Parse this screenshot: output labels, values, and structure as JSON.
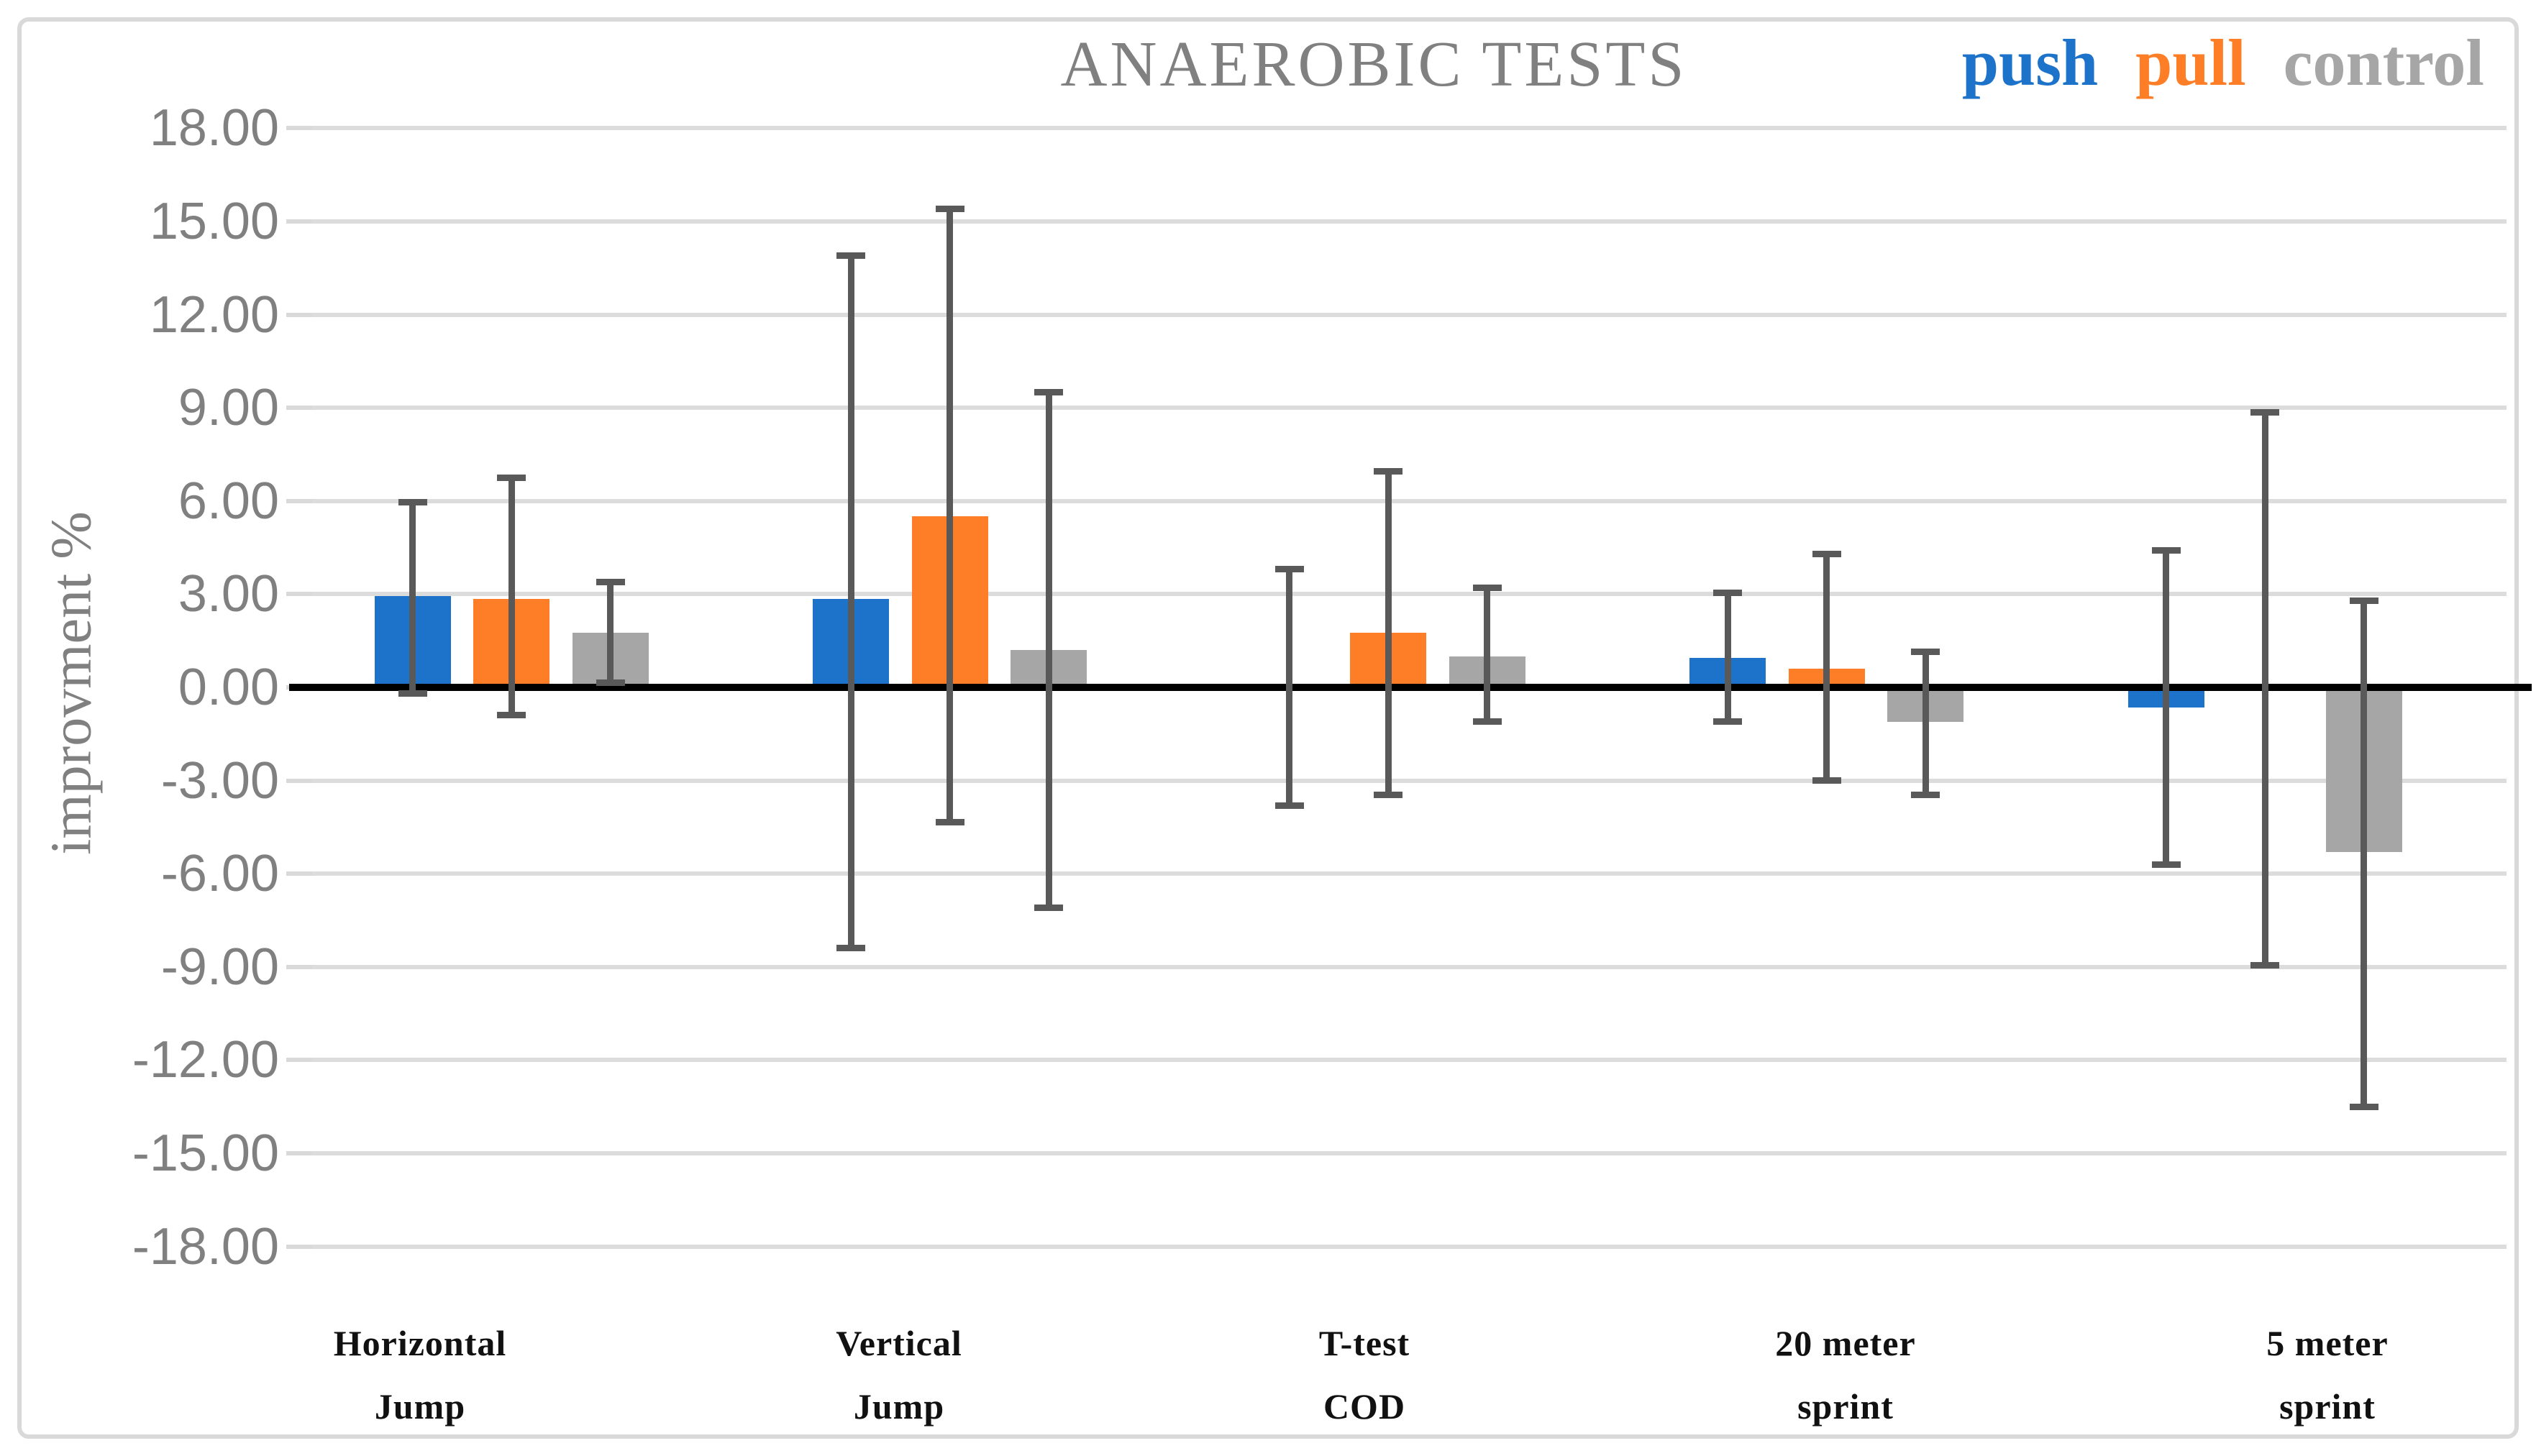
{
  "chart_data": {
    "type": "bar",
    "title": "ANAEROBIC TESTS",
    "ylabel": "improvment %",
    "xlabel": "",
    "categories": [
      "Horizontal Jump",
      "Vertical Jump",
      "T-test COD",
      "20 meter sprint",
      "5 meter sprint"
    ],
    "category_lines": [
      [
        "Horizontal",
        "Jump"
      ],
      [
        "Vertical",
        "Jump"
      ],
      [
        "T-test",
        "COD"
      ],
      [
        "20 meter",
        "sprint"
      ],
      [
        "5 meter",
        "sprint"
      ]
    ],
    "ylim": [
      -18,
      18
    ],
    "ytick_step": 3,
    "ytick_labels": [
      "18.00",
      "15.00",
      "12.00",
      "9.00",
      "6.00",
      "3.00",
      "0.00",
      "-3.00",
      "-6.00",
      "-9.00",
      "-12.00",
      "-15.00",
      "-18.00"
    ],
    "ytick_values": [
      18,
      15,
      12,
      9,
      6,
      3,
      0,
      -3,
      -6,
      -9,
      -12,
      -15,
      -18
    ],
    "grid": true,
    "legend_position": "top-right",
    "series": [
      {
        "name": "push",
        "color": "#1d73c9",
        "values": [
          2.95,
          2.85,
          0.0,
          0.95,
          -0.65
        ],
        "error_low": [
          -0.2,
          -8.4,
          -3.8,
          -1.1,
          -5.7
        ],
        "error_high": [
          5.95,
          13.9,
          3.8,
          3.05,
          4.4
        ]
      },
      {
        "name": "pull",
        "color": "#fd7e27",
        "values": [
          2.85,
          5.5,
          1.75,
          0.6,
          0.0
        ],
        "error_low": [
          -0.9,
          -4.35,
          -3.45,
          -3.0,
          -8.95
        ],
        "error_high": [
          6.75,
          15.4,
          6.95,
          4.3,
          8.85
        ]
      },
      {
        "name": "control",
        "color": "#a6a6a6",
        "values": [
          1.75,
          1.2,
          1.0,
          -1.1,
          -5.3
        ],
        "error_low": [
          0.15,
          -7.1,
          -1.1,
          -3.45,
          -13.5
        ],
        "error_high": [
          3.4,
          9.5,
          3.2,
          1.15,
          2.8
        ]
      }
    ],
    "error_bar_color": "#595959",
    "gridline_color": "#d9d9d9",
    "zero_line_color": "#000000",
    "title_color": "#808080",
    "axis_text_color": "#808080"
  }
}
